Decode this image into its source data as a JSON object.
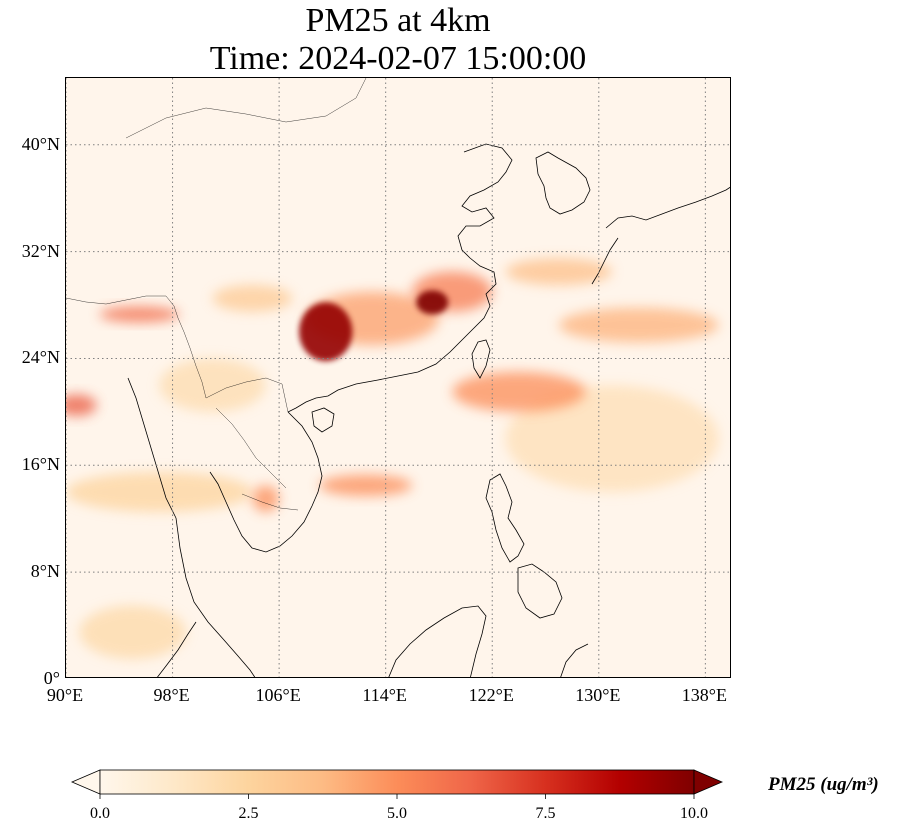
{
  "title": {
    "line1": "PM25 at 4km",
    "line2": "Time: 2024-02-07 15:00:00"
  },
  "map": {
    "variable": "PM25",
    "extent": {
      "lon_min": 90,
      "lon_max": 140,
      "lat_min": 0,
      "lat_max": 45
    },
    "gridlines": {
      "style": "dotted",
      "color": "#808080"
    },
    "lat_ticks": [
      {
        "value": 0,
        "label": "0°"
      },
      {
        "value": 8,
        "label": "8°N"
      },
      {
        "value": 16,
        "label": "16°N"
      },
      {
        "value": 24,
        "label": "24°N"
      },
      {
        "value": 32,
        "label": "32°N"
      },
      {
        "value": 40,
        "label": "40°N"
      }
    ],
    "lon_ticks": [
      {
        "value": 90,
        "label": "90°E"
      },
      {
        "value": 98,
        "label": "98°E"
      },
      {
        "value": 106,
        "label": "106°E"
      },
      {
        "value": 114,
        "label": "114°E"
      },
      {
        "value": 122,
        "label": "122°E"
      },
      {
        "value": 130,
        "label": "130°E"
      },
      {
        "value": 138,
        "label": "138°E"
      }
    ],
    "plumes": [
      {
        "lon": 109.5,
        "lat": 26.0,
        "rlon": 2.0,
        "rlat": 2.2,
        "value": 9.5
      },
      {
        "lon": 117.5,
        "lat": 28.2,
        "rlon": 1.2,
        "rlat": 0.9,
        "value": 10.0
      },
      {
        "lon": 113.0,
        "lat": 27.0,
        "rlon": 5.0,
        "rlat": 2.0,
        "value": 4.5
      },
      {
        "lon": 119.0,
        "lat": 29.0,
        "rlon": 3.0,
        "rlat": 1.5,
        "value": 5.5
      },
      {
        "lon": 95.5,
        "lat": 27.3,
        "rlon": 3.0,
        "rlat": 0.6,
        "value": 6.0
      },
      {
        "lon": 90.8,
        "lat": 20.5,
        "rlon": 1.5,
        "rlat": 0.8,
        "value": 6.5
      },
      {
        "lon": 105.0,
        "lat": 13.5,
        "rlon": 1.0,
        "rlat": 1.0,
        "value": 5.0
      },
      {
        "lon": 112.5,
        "lat": 14.5,
        "rlon": 3.5,
        "rlat": 0.8,
        "value": 5.0
      },
      {
        "lon": 124.0,
        "lat": 21.5,
        "rlon": 5.0,
        "rlat": 1.5,
        "value": 5.0
      },
      {
        "lon": 133.0,
        "lat": 26.5,
        "rlon": 6.0,
        "rlat": 1.3,
        "value": 4.0
      },
      {
        "lon": 127.0,
        "lat": 30.5,
        "rlon": 4.0,
        "rlat": 1.0,
        "value": 3.5
      },
      {
        "lon": 101.0,
        "lat": 22.0,
        "rlon": 4.0,
        "rlat": 2.0,
        "value": 2.0
      },
      {
        "lon": 97.0,
        "lat": 14.0,
        "rlon": 7.0,
        "rlat": 1.5,
        "value": 2.5
      },
      {
        "lon": 95.0,
        "lat": 3.5,
        "rlon": 4.0,
        "rlat": 2.0,
        "value": 2.2
      },
      {
        "lon": 131.0,
        "lat": 18.0,
        "rlon": 8.0,
        "rlat": 4.0,
        "value": 1.8
      },
      {
        "lon": 104.0,
        "lat": 28.5,
        "rlon": 3.0,
        "rlat": 1.0,
        "value": 3.0
      }
    ]
  },
  "colorbar": {
    "label": "PM25 (ug/m³)",
    "min": 0.0,
    "max": 10.0,
    "extend": "both",
    "colormap": "OrRd",
    "colors": [
      "#fff7ec",
      "#fee8c8",
      "#fdd49e",
      "#fdbb84",
      "#fc8d59",
      "#ef6548",
      "#d7301f",
      "#b30000",
      "#7f0000"
    ],
    "ticks": [
      {
        "value": 0.0,
        "label": "0.0"
      },
      {
        "value": 2.5,
        "label": "2.5"
      },
      {
        "value": 5.0,
        "label": "5.0"
      },
      {
        "value": 7.5,
        "label": "7.5"
      },
      {
        "value": 10.0,
        "label": "10.0"
      }
    ]
  }
}
